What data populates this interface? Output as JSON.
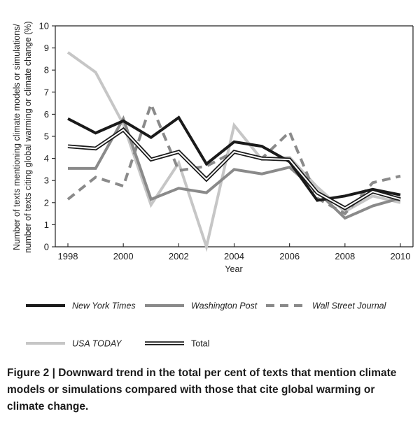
{
  "chart_data": {
    "type": "line",
    "ylabel": "Number of texts mentioning climate models or simulations/ number of texts citing global warming or climate change (%)",
    "xlabel": "Year",
    "x": [
      1998,
      1999,
      2000,
      2001,
      2002,
      2003,
      2004,
      2005,
      2006,
      2007,
      2008,
      2009,
      2010
    ],
    "xticks": [
      1998,
      2000,
      2002,
      2004,
      2006,
      2008,
      2010
    ],
    "xlim": [
      1998,
      2010
    ],
    "ylim": [
      0,
      10
    ],
    "yticks": [
      0,
      1,
      2,
      3,
      4,
      5,
      6,
      7,
      8,
      9,
      10
    ],
    "grid": false,
    "legend_position": "bottom",
    "series": [
      {
        "name": "New York Times",
        "style": "solid",
        "color": "#1a1a1a",
        "values": [
          5.8,
          5.15,
          5.7,
          4.95,
          5.85,
          3.75,
          4.75,
          4.55,
          3.85,
          2.1,
          2.3,
          2.6,
          2.35
        ]
      },
      {
        "name": "Washington Post",
        "style": "solid",
        "color": "#8a8a8a",
        "values": [
          3.55,
          3.55,
          5.8,
          2.15,
          2.65,
          2.45,
          3.5,
          3.3,
          3.6,
          2.5,
          1.3,
          1.85,
          2.2
        ]
      },
      {
        "name": "Wall Street Journal",
        "style": "dashed",
        "color": "#8a8a8a",
        "values": [
          2.15,
          3.15,
          2.75,
          6.45,
          3.45,
          3.65,
          4.3,
          4.0,
          5.2,
          2.2,
          1.5,
          2.9,
          3.2
        ]
      },
      {
        "name": "USA TODAY",
        "style": "solid",
        "color": "#c6c6c6",
        "values": [
          8.8,
          7.9,
          5.55,
          1.9,
          3.8,
          0.0,
          5.5,
          3.95,
          4.05,
          2.7,
          1.6,
          2.3,
          2.0
        ]
      },
      {
        "name": "Total",
        "style": "double",
        "color": "#1a1a1a",
        "values": [
          4.55,
          4.45,
          5.3,
          3.95,
          4.3,
          3.05,
          4.3,
          4.0,
          3.95,
          2.45,
          1.75,
          2.5,
          2.15
        ]
      }
    ]
  },
  "caption": {
    "label": "Figure 2 | ",
    "text": "Downward trend in the total per cent of texts that mention climate models or simulations compared with those that cite global warming or climate change."
  }
}
